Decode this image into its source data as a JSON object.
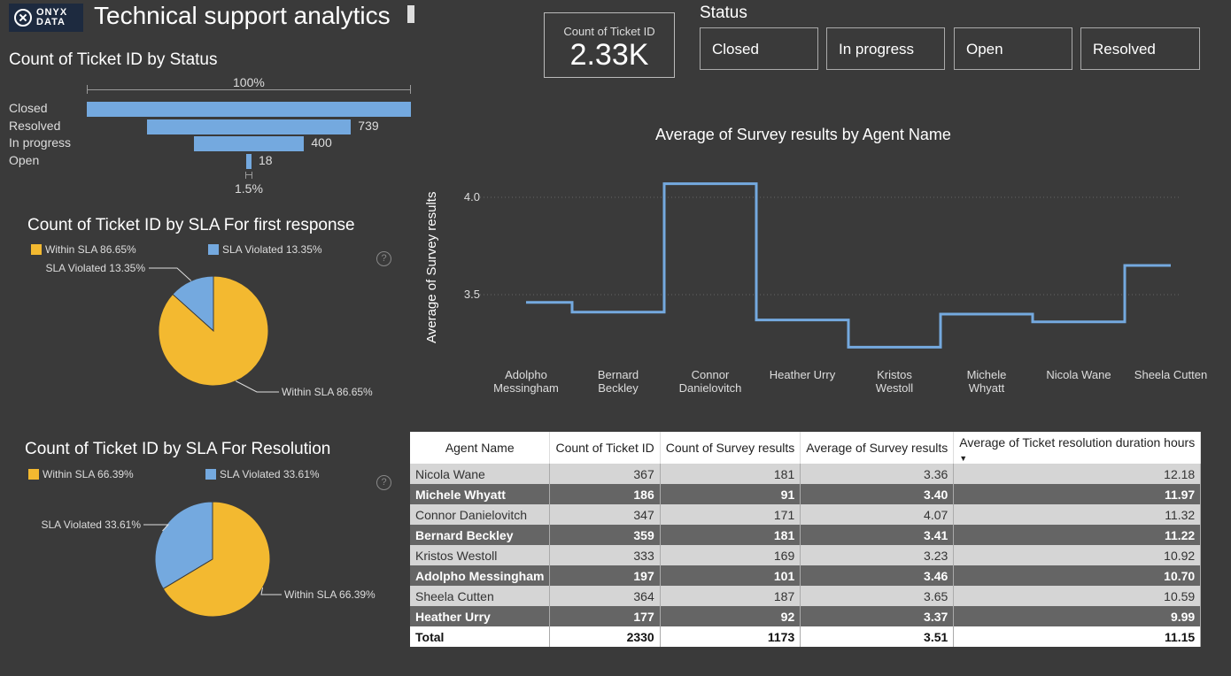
{
  "logo": {
    "line1": "ONYX",
    "line2": "DATA"
  },
  "title": "Technical support analytics",
  "kpi": {
    "label": "Count of Ticket ID",
    "value": "2.33K"
  },
  "slicer": {
    "title": "Status",
    "options": [
      "Closed",
      "In progress",
      "Open",
      "Resolved"
    ]
  },
  "funnel": {
    "title": "Count of Ticket ID by Status",
    "top_pct": "100%",
    "bottom_pct": "1.5%",
    "rows": [
      {
        "label": "Closed",
        "value": 1173,
        "value_label": ""
      },
      {
        "label": "Resolved",
        "value": 739,
        "value_label": "739"
      },
      {
        "label": "In progress",
        "value": 400,
        "value_label": "400"
      },
      {
        "label": "Open",
        "value": 18,
        "value_label": "18"
      }
    ]
  },
  "pie1": {
    "title": "Count of Ticket ID by SLA For first response",
    "legend": [
      {
        "label": "Within SLA 86.65%",
        "color": "#f3b930"
      },
      {
        "label": "SLA Violated 13.35%",
        "color": "#74a9df"
      }
    ],
    "slices": [
      {
        "label": "Within SLA 86.65%",
        "value": 86.65
      },
      {
        "label": "SLA Violated 13.35%",
        "value": 13.35
      }
    ]
  },
  "pie2": {
    "title": "Count of Ticket ID by SLA For Resolution",
    "legend": [
      {
        "label": "Within SLA 66.39%",
        "color": "#f3b930"
      },
      {
        "label": "SLA Violated 33.61%",
        "color": "#74a9df"
      }
    ],
    "slices": [
      {
        "label": "Within SLA 66.39%",
        "value": 66.39
      },
      {
        "label": "SLA Violated 33.61%",
        "value": 33.61
      }
    ]
  },
  "chart_data": {
    "type": "line",
    "title": "Average of Survey results by Agent Name",
    "ylabel": "Average of Survey results",
    "xlabel": "",
    "categories": [
      "Adolpho Messingham",
      "Bernard Beckley",
      "Connor Danielovitch",
      "Heather Urry",
      "Kristos Westoll",
      "Michele Whyatt",
      "Nicola Wane",
      "Sheela Cutten"
    ],
    "values": [
      3.46,
      3.41,
      4.07,
      3.37,
      3.23,
      3.4,
      3.36,
      3.65
    ],
    "yticks": [
      "4.0",
      "3.5"
    ],
    "ylim": [
      3.15,
      4.15
    ],
    "grid": true,
    "color": "#74a9df"
  },
  "table": {
    "headers": [
      "Agent Name",
      "Count of Ticket ID",
      "Count of Survey results",
      "Average of Survey results",
      "Average of Ticket resolution duration hours"
    ],
    "rows": [
      [
        "Nicola Wane",
        "367",
        "181",
        "3.36",
        "12.18"
      ],
      [
        "Michele Whyatt",
        "186",
        "91",
        "3.40",
        "11.97"
      ],
      [
        "Connor Danielovitch",
        "347",
        "171",
        "4.07",
        "11.32"
      ],
      [
        "Bernard Beckley",
        "359",
        "181",
        "3.41",
        "11.22"
      ],
      [
        "Kristos Westoll",
        "333",
        "169",
        "3.23",
        "10.92"
      ],
      [
        "Adolpho Messingham",
        "197",
        "101",
        "3.46",
        "10.70"
      ],
      [
        "Sheela Cutten",
        "364",
        "187",
        "3.65",
        "10.59"
      ],
      [
        "Heather Urry",
        "177",
        "92",
        "3.37",
        "9.99"
      ]
    ],
    "total": [
      "Total",
      "2330",
      "1173",
      "3.51",
      "11.15"
    ]
  }
}
